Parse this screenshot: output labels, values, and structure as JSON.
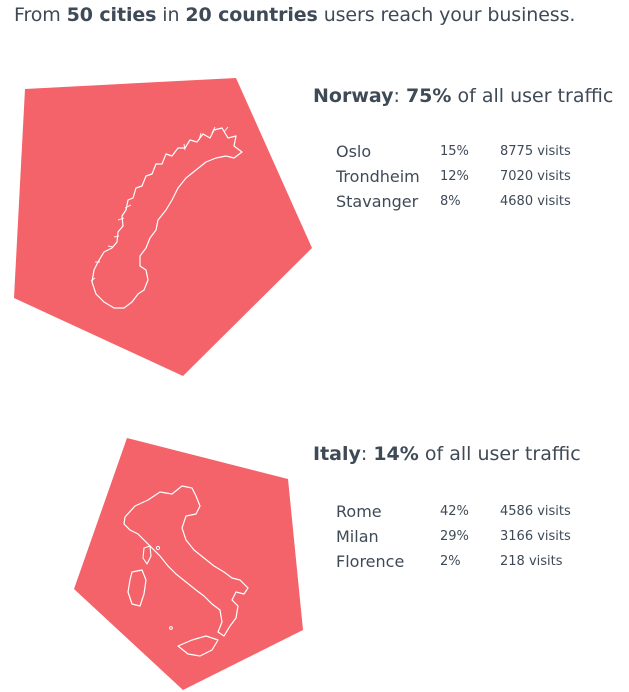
{
  "colors": {
    "shape_fill": "#f4626a",
    "outline": "#ffffff",
    "text": "#3f4a57"
  },
  "header": {
    "prefix": "From ",
    "cities": "50 cities",
    "middle": " in ",
    "countries": "20 countries",
    "suffix": " users reach your business."
  },
  "countries": [
    {
      "name": "Norway",
      "share": "75%",
      "share_suffix": " of all user traffic",
      "map_icon": "norway-outline",
      "cities": [
        {
          "name": "Oslo",
          "percent": "15%",
          "visits": "8775 visits"
        },
        {
          "name": "Trondheim",
          "percent": "12%",
          "visits": "7020 visits"
        },
        {
          "name": "Stavanger",
          "percent": "8%",
          "visits": "4680 visits"
        }
      ]
    },
    {
      "name": "Italy",
      "share": "14%",
      "share_suffix": " of all user traffic",
      "map_icon": "italy-outline",
      "cities": [
        {
          "name": "Rome",
          "percent": "42%",
          "visits": "4586 visits"
        },
        {
          "name": "Milan",
          "percent": "29%",
          "visits": "3166 visits"
        },
        {
          "name": "Florence",
          "percent": "2%",
          "visits": "218 visits"
        }
      ]
    }
  ]
}
